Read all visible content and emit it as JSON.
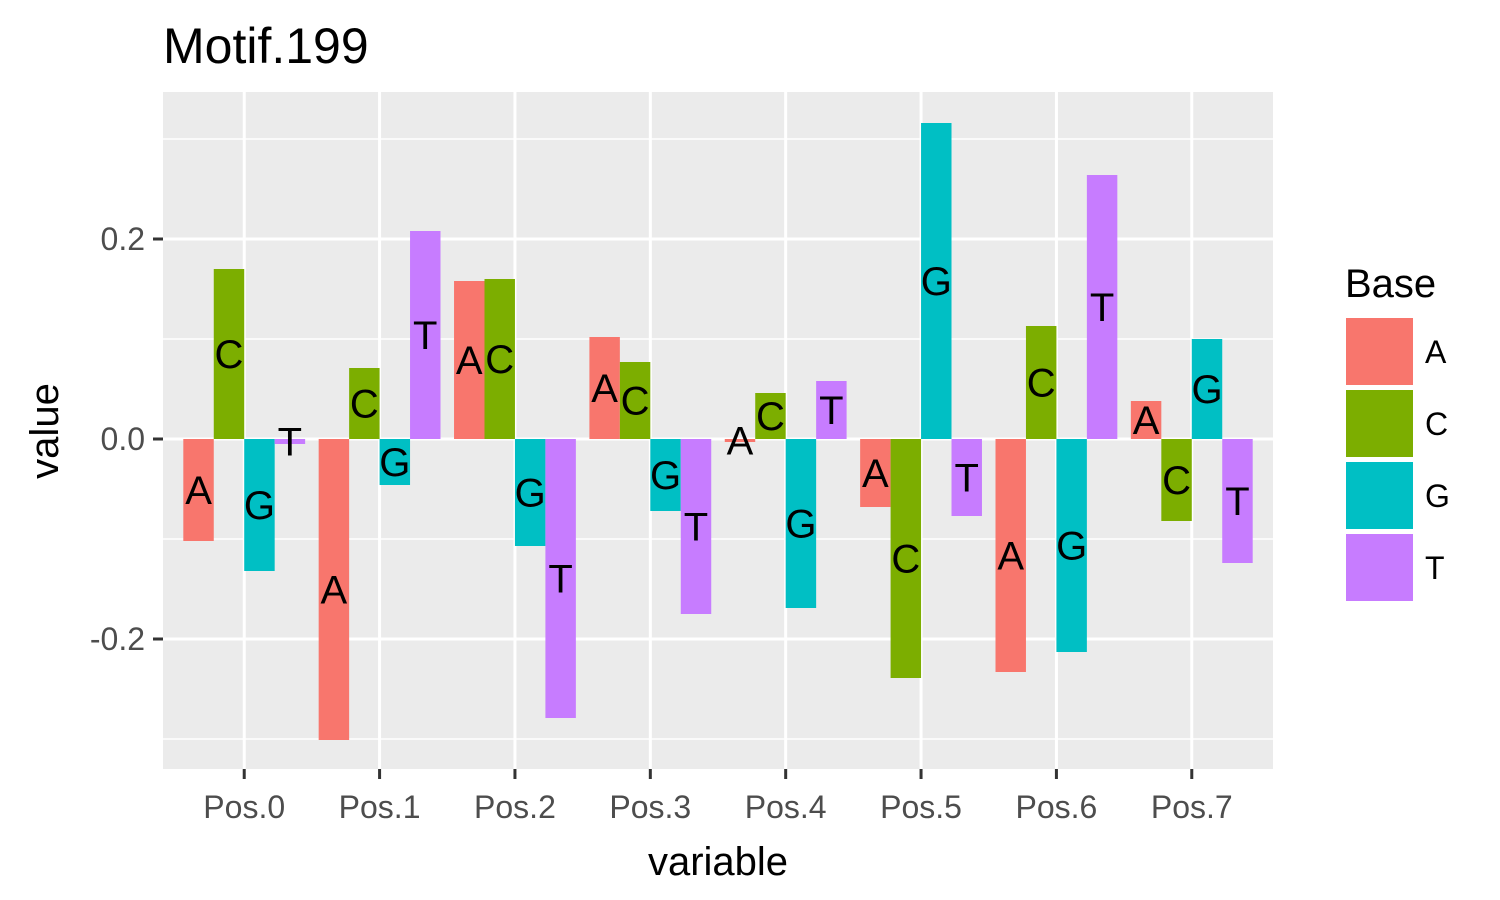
{
  "chart_data": {
    "type": "bar",
    "title": "Motif.199",
    "xlabel": "variable",
    "ylabel": "value",
    "categories": [
      "Pos.0",
      "Pos.1",
      "Pos.2",
      "Pos.3",
      "Pos.4",
      "Pos.5",
      "Pos.6",
      "Pos.7"
    ],
    "series": [
      {
        "name": "A",
        "color": "#F8766D",
        "values": [
          -0.102,
          -0.301,
          0.158,
          0.102,
          -0.003,
          -0.068,
          -0.233,
          0.038
        ]
      },
      {
        "name": "C",
        "color": "#7CAE00",
        "values": [
          0.17,
          0.071,
          0.16,
          0.077,
          0.046,
          -0.239,
          0.113,
          -0.082
        ]
      },
      {
        "name": "G",
        "color": "#00BFC4",
        "values": [
          -0.132,
          -0.046,
          -0.107,
          -0.072,
          -0.169,
          0.316,
          -0.213,
          0.1
        ]
      },
      {
        "name": "T",
        "color": "#C77CFF",
        "values": [
          -0.005,
          0.208,
          -0.279,
          -0.175,
          0.058,
          -0.077,
          0.264,
          -0.124
        ]
      }
    ],
    "ylim": [
      -0.33,
      0.347
    ],
    "y_ticks": [
      -0.2,
      0.0,
      0.2
    ],
    "y_tick_labels": [
      "-0.2",
      "0.0",
      "0.2"
    ],
    "grid": true,
    "bar_labels": true,
    "legend": {
      "title": "Base",
      "position": "right"
    }
  }
}
